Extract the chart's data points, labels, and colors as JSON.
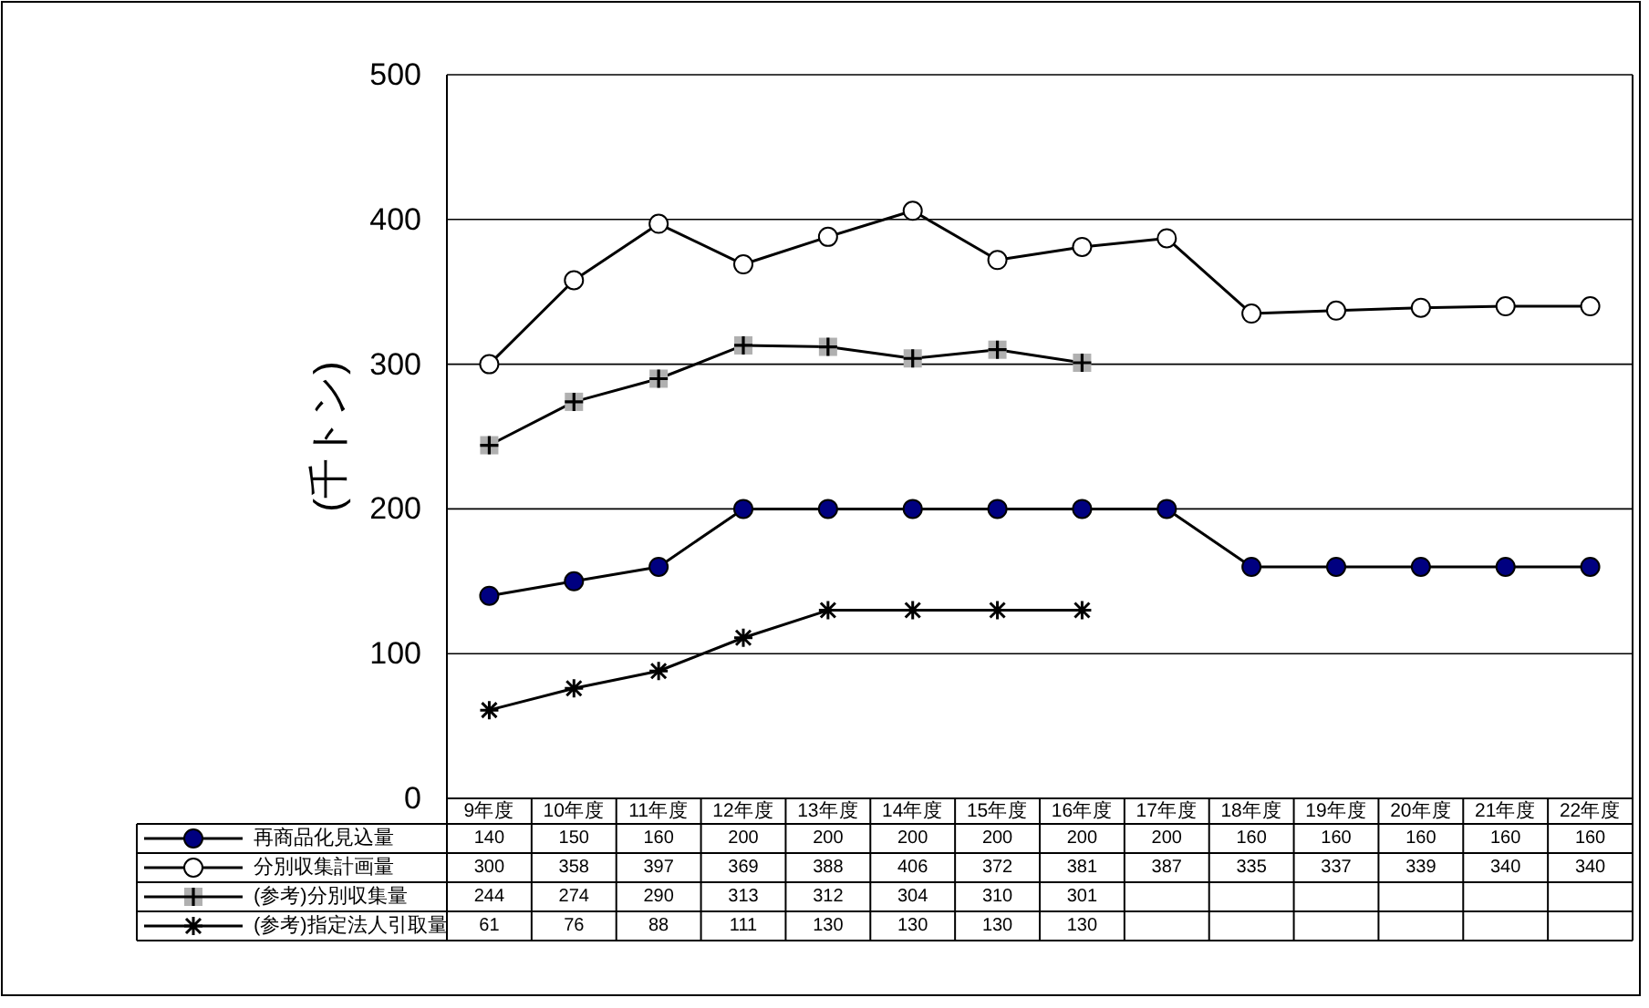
{
  "chart_data": {
    "type": "line",
    "ylabel": "(千トン)",
    "categories": [
      "9年度",
      "10年度",
      "11年度",
      "12年度",
      "13年度",
      "14年度",
      "15年度",
      "16年度",
      "17年度",
      "18年度",
      "19年度",
      "20年度",
      "21年度",
      "22年度"
    ],
    "series": [
      {
        "name": "再商品化見込量",
        "color": "#000080",
        "marker": "circle",
        "values": [
          140,
          150,
          160,
          200,
          200,
          200,
          200,
          200,
          200,
          160,
          160,
          160,
          160,
          160
        ]
      },
      {
        "name": "分別収集計画量",
        "color": "#ffffff",
        "marker": "circle",
        "values": [
          300,
          358,
          397,
          369,
          388,
          406,
          372,
          381,
          387,
          335,
          337,
          339,
          340,
          340
        ]
      },
      {
        "name": "(参考)分別収集量",
        "color": "#b0b0b0",
        "marker": "square",
        "values": [
          244,
          274,
          290,
          313,
          312,
          304,
          310,
          301,
          null,
          null,
          null,
          null,
          null,
          null
        ]
      },
      {
        "name": "(参考)指定法人引取量",
        "color": "#000000",
        "marker": "cross",
        "values": [
          61,
          76,
          88,
          111,
          130,
          130,
          130,
          130,
          null,
          null,
          null,
          null,
          null,
          null
        ]
      }
    ],
    "ylim": [
      0,
      500
    ],
    "yticks": [
      0,
      100,
      200,
      300,
      400,
      500
    ],
    "grid": "y",
    "legend": "bottom left",
    "data_labels": true,
    "line_style": "solid"
  }
}
